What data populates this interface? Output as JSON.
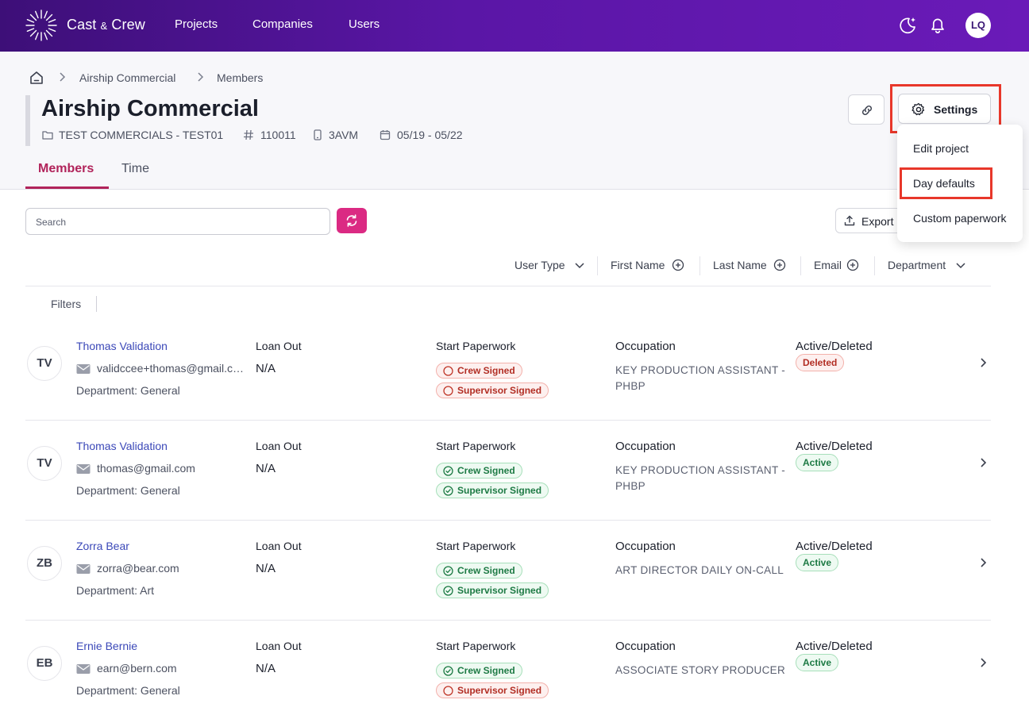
{
  "nav": {
    "brand_main": "Cast",
    "brand_amp": "&",
    "brand_end": "Crew",
    "links": [
      "Projects",
      "Companies",
      "Users"
    ],
    "avatar": "LQ"
  },
  "breadcrumb": [
    "Airship Commercial",
    "Members"
  ],
  "project": {
    "title": "Airship Commercial",
    "folder": "TEST COMMERCIALS - TEST01",
    "number": "110011",
    "code": "3AVM",
    "dates": "05/19 - 05/22"
  },
  "header_actions": {
    "settings_label": "Settings"
  },
  "settings_menu": [
    "Edit project",
    "Day defaults",
    "Custom paperwork"
  ],
  "tabs": [
    "Members",
    "Time"
  ],
  "toolbar": {
    "search_placeholder": "Search",
    "export_label": "Export"
  },
  "sort_headers": [
    "User Type",
    "First Name",
    "Last Name",
    "Email",
    "Department"
  ],
  "filters_label": "Filters",
  "column_labels": {
    "loan_out": "Loan Out",
    "paperwork": "Start Paperwork",
    "occupation": "Occupation",
    "status": "Active/Deleted"
  },
  "members": [
    {
      "initials": "TV",
      "name": "Thomas Validation",
      "email": "validccee+thomas@gmail.com",
      "department": "Department: General",
      "loan_out": "N/A",
      "crew_signed": "Crew Signed",
      "crew_ok": false,
      "supervisor_signed": "Supervisor Signed",
      "supervisor_ok": false,
      "occupation": "KEY PRODUCTION ASSISTANT - PHBP",
      "status": "Deleted"
    },
    {
      "initials": "TV",
      "name": "Thomas Validation",
      "email": "thomas@gmail.com",
      "department": "Department: General",
      "loan_out": "N/A",
      "crew_signed": "Crew Signed",
      "crew_ok": true,
      "supervisor_signed": "Supervisor Signed",
      "supervisor_ok": true,
      "occupation": "KEY PRODUCTION ASSISTANT - PHBP",
      "status": "Active"
    },
    {
      "initials": "ZB",
      "name": "Zorra Bear",
      "email": "zorra@bear.com",
      "department": "Department: Art",
      "loan_out": "N/A",
      "crew_signed": "Crew Signed",
      "crew_ok": true,
      "supervisor_signed": "Supervisor Signed",
      "supervisor_ok": true,
      "occupation": "ART DIRECTOR DAILY ON-CALL",
      "status": "Active"
    },
    {
      "initials": "EB",
      "name": "Ernie Bernie",
      "email": "earn@bern.com",
      "department": "Department: General",
      "loan_out": "N/A",
      "crew_signed": "Crew Signed",
      "crew_ok": true,
      "supervisor_signed": "Supervisor Signed",
      "supervisor_ok": false,
      "occupation": "ASSOCIATE STORY PRODUCER",
      "status": "Active"
    }
  ]
}
